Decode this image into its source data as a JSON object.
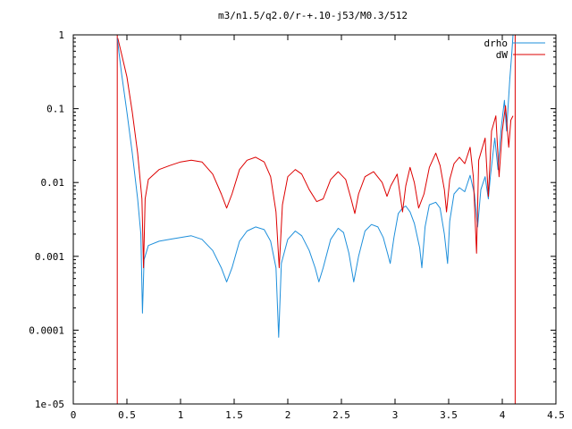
{
  "chart_data": {
    "type": "line",
    "title": "m3/n1.5/q2.0/r-+.10-j53/M0.3/512",
    "xlabel": "",
    "ylabel": "",
    "xlim": [
      0,
      4.5
    ],
    "ylim": [
      1e-05,
      1
    ],
    "yscale": "log",
    "grid": false,
    "legend_position": "top-right",
    "x_ticks": [
      {
        "value": 0,
        "label": "0"
      },
      {
        "value": 0.5,
        "label": "0.5"
      },
      {
        "value": 1,
        "label": "1"
      },
      {
        "value": 1.5,
        "label": "1.5"
      },
      {
        "value": 2,
        "label": "2"
      },
      {
        "value": 2.5,
        "label": "2.5"
      },
      {
        "value": 3,
        "label": "3"
      },
      {
        "value": 3.5,
        "label": "3.5"
      },
      {
        "value": 4,
        "label": "4"
      },
      {
        "value": 4.5,
        "label": "4.5"
      }
    ],
    "y_ticks": [
      {
        "value": 1,
        "label": "1"
      },
      {
        "value": 0.1,
        "label": "0.1"
      },
      {
        "value": 0.01,
        "label": "0.01"
      },
      {
        "value": 0.001,
        "label": "0.001"
      },
      {
        "value": 0.0001,
        "label": "0.0001"
      },
      {
        "value": 1e-05,
        "label": "1e-05"
      }
    ],
    "series": [
      {
        "name": "drho",
        "color": "#1e8fdb",
        "points": [
          [
            0.41,
            0.9
          ],
          [
            0.45,
            0.3
          ],
          [
            0.5,
            0.09
          ],
          [
            0.55,
            0.025
          ],
          [
            0.6,
            0.006
          ],
          [
            0.63,
            0.002
          ],
          [
            0.645,
            0.00017
          ],
          [
            0.66,
            0.0009
          ],
          [
            0.7,
            0.0014
          ],
          [
            0.8,
            0.0016
          ],
          [
            0.9,
            0.0017
          ],
          [
            1.0,
            0.0018
          ],
          [
            1.1,
            0.0019
          ],
          [
            1.2,
            0.0017
          ],
          [
            1.3,
            0.0012
          ],
          [
            1.38,
            0.0007
          ],
          [
            1.43,
            0.00045
          ],
          [
            1.48,
            0.0007
          ],
          [
            1.55,
            0.0016
          ],
          [
            1.62,
            0.0022
          ],
          [
            1.7,
            0.0025
          ],
          [
            1.78,
            0.0023
          ],
          [
            1.84,
            0.0016
          ],
          [
            1.89,
            0.0007
          ],
          [
            1.915,
            8e-05
          ],
          [
            1.94,
            0.0008
          ],
          [
            2.0,
            0.0017
          ],
          [
            2.07,
            0.0022
          ],
          [
            2.13,
            0.0019
          ],
          [
            2.2,
            0.0012
          ],
          [
            2.255,
            0.0007
          ],
          [
            2.29,
            0.00045
          ],
          [
            2.33,
            0.0007
          ],
          [
            2.4,
            0.0017
          ],
          [
            2.47,
            0.0024
          ],
          [
            2.52,
            0.0021
          ],
          [
            2.57,
            0.0011
          ],
          [
            2.615,
            0.00045
          ],
          [
            2.66,
            0.001
          ],
          [
            2.72,
            0.0022
          ],
          [
            2.78,
            0.0027
          ],
          [
            2.84,
            0.0025
          ],
          [
            2.89,
            0.0018
          ],
          [
            2.93,
            0.0011
          ],
          [
            2.955,
            0.0008
          ],
          [
            2.99,
            0.0018
          ],
          [
            3.03,
            0.0038
          ],
          [
            3.07,
            0.0045
          ],
          [
            3.1,
            0.0048
          ],
          [
            3.14,
            0.004
          ],
          [
            3.18,
            0.0028
          ],
          [
            3.23,
            0.0013
          ],
          [
            3.25,
            0.0007
          ],
          [
            3.28,
            0.0025
          ],
          [
            3.32,
            0.005
          ],
          [
            3.38,
            0.0054
          ],
          [
            3.42,
            0.0045
          ],
          [
            3.46,
            0.002
          ],
          [
            3.49,
            0.0008
          ],
          [
            3.51,
            0.003
          ],
          [
            3.55,
            0.007
          ],
          [
            3.6,
            0.0085
          ],
          [
            3.65,
            0.0075
          ],
          [
            3.7,
            0.0125
          ],
          [
            3.74,
            0.007
          ],
          [
            3.77,
            0.0025
          ],
          [
            3.8,
            0.008
          ],
          [
            3.84,
            0.012
          ],
          [
            3.87,
            0.006
          ],
          [
            3.89,
            0.0125
          ],
          [
            3.93,
            0.04
          ],
          [
            3.96,
            0.015
          ],
          [
            3.99,
            0.055
          ],
          [
            4.02,
            0.13
          ],
          [
            4.04,
            0.05
          ],
          [
            4.07,
            0.25
          ],
          [
            4.09,
            0.6
          ],
          [
            4.1,
            1.0
          ]
        ]
      },
      {
        "name": "dW",
        "color": "#dd0000",
        "points": [
          [
            0.415,
            0.9
          ],
          [
            0.45,
            0.55
          ],
          [
            0.5,
            0.27
          ],
          [
            0.55,
            0.09
          ],
          [
            0.6,
            0.025
          ],
          [
            0.64,
            0.006
          ],
          [
            0.655,
            0.0007
          ],
          [
            0.67,
            0.006
          ],
          [
            0.7,
            0.011
          ],
          [
            0.8,
            0.015
          ],
          [
            0.9,
            0.017
          ],
          [
            1.0,
            0.019
          ],
          [
            1.1,
            0.02
          ],
          [
            1.2,
            0.019
          ],
          [
            1.3,
            0.013
          ],
          [
            1.38,
            0.007
          ],
          [
            1.43,
            0.0045
          ],
          [
            1.48,
            0.007
          ],
          [
            1.55,
            0.015
          ],
          [
            1.62,
            0.02
          ],
          [
            1.7,
            0.022
          ],
          [
            1.78,
            0.019
          ],
          [
            1.84,
            0.012
          ],
          [
            1.89,
            0.004
          ],
          [
            1.92,
            0.0007
          ],
          [
            1.95,
            0.005
          ],
          [
            2.0,
            0.012
          ],
          [
            2.07,
            0.015
          ],
          [
            2.13,
            0.013
          ],
          [
            2.2,
            0.008
          ],
          [
            2.27,
            0.0055
          ],
          [
            2.33,
            0.006
          ],
          [
            2.4,
            0.011
          ],
          [
            2.47,
            0.014
          ],
          [
            2.54,
            0.011
          ],
          [
            2.59,
            0.006
          ],
          [
            2.625,
            0.0038
          ],
          [
            2.66,
            0.007
          ],
          [
            2.72,
            0.012
          ],
          [
            2.8,
            0.014
          ],
          [
            2.88,
            0.01
          ],
          [
            2.925,
            0.0065
          ],
          [
            2.96,
            0.009
          ],
          [
            3.02,
            0.013
          ],
          [
            3.07,
            0.004
          ],
          [
            3.1,
            0.009
          ],
          [
            3.14,
            0.016
          ],
          [
            3.18,
            0.01
          ],
          [
            3.22,
            0.0045
          ],
          [
            3.27,
            0.007
          ],
          [
            3.32,
            0.016
          ],
          [
            3.38,
            0.025
          ],
          [
            3.42,
            0.017
          ],
          [
            3.46,
            0.008
          ],
          [
            3.48,
            0.004
          ],
          [
            3.51,
            0.011
          ],
          [
            3.55,
            0.018
          ],
          [
            3.6,
            0.022
          ],
          [
            3.65,
            0.018
          ],
          [
            3.7,
            0.03
          ],
          [
            3.73,
            0.012
          ],
          [
            3.76,
            0.0011
          ],
          [
            3.78,
            0.02
          ],
          [
            3.84,
            0.04
          ],
          [
            3.87,
            0.0065
          ],
          [
            3.9,
            0.05
          ],
          [
            3.94,
            0.08
          ],
          [
            3.97,
            0.012
          ],
          [
            4.0,
            0.05
          ],
          [
            4.03,
            0.11
          ],
          [
            4.06,
            0.03
          ],
          [
            4.08,
            0.07
          ],
          [
            4.1,
            0.08
          ]
        ]
      }
    ],
    "vertical_lines": [
      {
        "x": 0.41,
        "color": "#dd0000"
      },
      {
        "x": 4.12,
        "color": "#dd0000"
      }
    ]
  }
}
